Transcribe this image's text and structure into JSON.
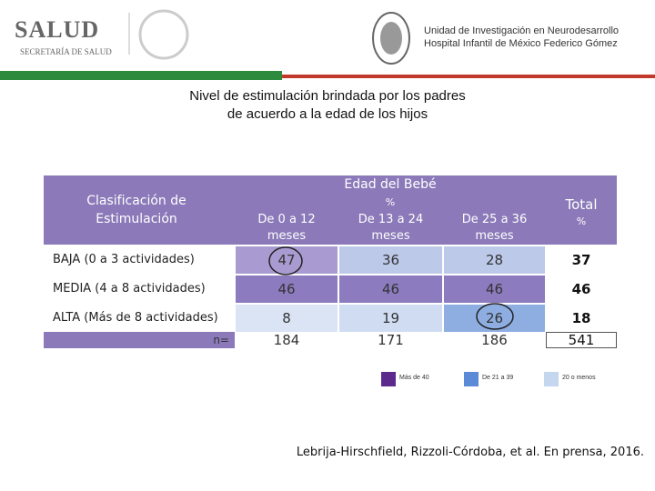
{
  "header": {
    "logo_text": "SALUD",
    "logo_subtext": "SECRETARÍA DE SALUD",
    "institution": [
      "Unidad de Investigación en Neurodesarrollo",
      "Hospital Infantil de México Federico Gómez"
    ]
  },
  "title": [
    "Nivel de estimulación brindada por los padres",
    "de acuerdo a la edad de los hijos"
  ],
  "table": {
    "row_header": "Clasificación de Estimulación",
    "group_header": "Edad del Bebé",
    "group_unit": "%",
    "columns": [
      "De 0 a 12 meses",
      "De 13 a 24 meses",
      "De 25 a 36 meses"
    ],
    "total_header": "Total",
    "total_unit": "%",
    "rows": [
      {
        "label": "BAJA (0 a 3 actividades)",
        "values": [
          47,
          36,
          28,
          37
        ],
        "colors": [
          "#a99bd1",
          "#bcc9e9",
          "#bcc9e9",
          "#ffffff"
        ]
      },
      {
        "label": "MEDIA (4 a 8 actividades)",
        "values": [
          46,
          46,
          46,
          46
        ],
        "colors": [
          "#8d7bbf",
          "#8d7bbf",
          "#8d7bbf",
          "#ffffff"
        ]
      },
      {
        "label": "ALTA (Más de 8 actividades)",
        "values": [
          8,
          19,
          26,
          18
        ],
        "colors": [
          "#dbe4f4",
          "#cfdcf2",
          "#8eaee2",
          "#ffffff"
        ]
      }
    ],
    "n_label": "n=",
    "n": [
      184,
      171,
      186,
      541
    ]
  },
  "legend": [
    {
      "label": "Más de 40",
      "color": "#5b2a8c"
    },
    {
      "label": "De 21 a 39",
      "color": "#5b8bd6"
    },
    {
      "label": "20 o menos",
      "color": "#c5d6ef"
    }
  ],
  "citation": "Lebrija-Hirschfield, Rizzoli-Córdoba, et al. En prensa, 2016."
}
